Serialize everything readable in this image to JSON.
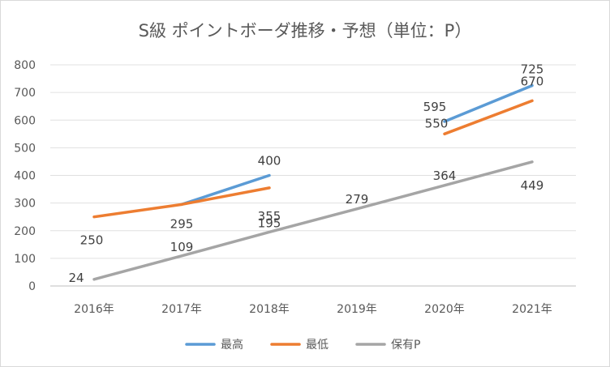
{
  "chart_data": {
    "type": "line",
    "title": "S級 ポイントボーダ推移・予想（単位：P）",
    "categories": [
      "2016年",
      "2017年",
      "2018年",
      "2019年",
      "2020年",
      "2021年"
    ],
    "ylim": [
      0,
      800
    ],
    "yticks": [
      0,
      100,
      200,
      300,
      400,
      500,
      600,
      700,
      800
    ],
    "grid": true,
    "legend_position": "bottom",
    "series": [
      {
        "name": "最高",
        "color": "#5b9bd5",
        "values": [
          null,
          295,
          400,
          null,
          595,
          725
        ],
        "labels": [
          null,
          null,
          "400",
          null,
          "595",
          "725"
        ]
      },
      {
        "name": "最低",
        "color": "#ed7d31",
        "values": [
          250,
          295,
          355,
          null,
          550,
          670
        ],
        "labels": [
          "250",
          "295",
          "355",
          null,
          "550",
          "670"
        ]
      },
      {
        "name": "保有P",
        "color": "#a5a5a5",
        "values": [
          24,
          109,
          195,
          279,
          364,
          449
        ],
        "labels": [
          "24",
          "109",
          "195",
          "279",
          "364",
          "449"
        ]
      }
    ]
  }
}
